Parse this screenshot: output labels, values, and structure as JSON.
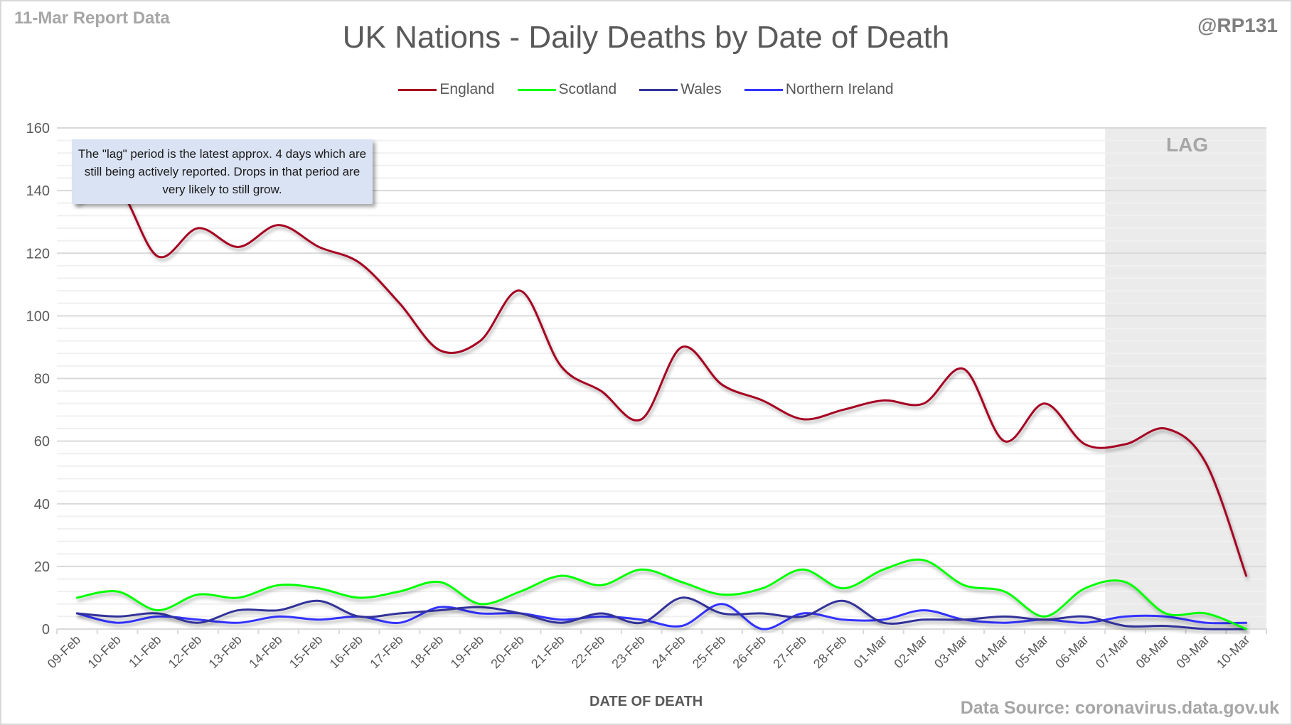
{
  "header": {
    "report_tag": "11-Mar Report Data",
    "handle": "@RP131",
    "source": "Data Source: coronavirus.data.gov.uk"
  },
  "annotation": {
    "text": "The \"lag\" period is the latest approx. 4 days which are still being actively reported.  Drops in that period are very likely to still grow.",
    "lag_label": "LAG"
  },
  "chart_data": {
    "type": "line",
    "title": "UK Nations - Daily Deaths by Date of Death",
    "xlabel": "DATE OF DEATH",
    "ylabel": "",
    "ylim": [
      0,
      160
    ],
    "yticks": [
      0,
      20,
      40,
      60,
      80,
      100,
      120,
      140,
      160
    ],
    "grid": true,
    "minor_grid_step": 4,
    "legend_position": "top-center",
    "smoothed": true,
    "lag_region": {
      "from": "07-Mar",
      "to": "10-Mar",
      "label": "LAG"
    },
    "categories": [
      "09-Feb",
      "10-Feb",
      "11-Feb",
      "12-Feb",
      "13-Feb",
      "14-Feb",
      "15-Feb",
      "16-Feb",
      "17-Feb",
      "18-Feb",
      "19-Feb",
      "20-Feb",
      "21-Feb",
      "22-Feb",
      "23-Feb",
      "24-Feb",
      "25-Feb",
      "26-Feb",
      "27-Feb",
      "28-Feb",
      "01-Mar",
      "02-Mar",
      "03-Mar",
      "04-Mar",
      "05-Mar",
      "06-Mar",
      "07-Mar",
      "08-Mar",
      "09-Mar",
      "10-Mar"
    ],
    "series": [
      {
        "name": "England",
        "color": "#a50021",
        "values": [
          136,
          141,
          119,
          128,
          122,
          129,
          122,
          117,
          104,
          89,
          92,
          108,
          84,
          76,
          67,
          90,
          78,
          73,
          67,
          70,
          73,
          72,
          83,
          60,
          72,
          59,
          59,
          64,
          53,
          17
        ]
      },
      {
        "name": "Scotland",
        "color": "#00ff00",
        "values": [
          10,
          12,
          6,
          11,
          10,
          14,
          13,
          10,
          12,
          15,
          8,
          12,
          17,
          14,
          19,
          15,
          11,
          13,
          19,
          13,
          19,
          22,
          14,
          12,
          4,
          13,
          15,
          5,
          5,
          0
        ]
      },
      {
        "name": "Wales",
        "color": "#333399",
        "values": [
          5,
          4,
          5,
          2,
          6,
          6,
          9,
          4,
          5,
          6,
          7,
          5,
          2,
          5,
          2,
          10,
          5,
          5,
          4,
          9,
          2,
          3,
          3,
          4,
          3,
          4,
          1,
          1,
          0,
          0
        ]
      },
      {
        "name": "Northern Ireland",
        "color": "#3333ff",
        "values": [
          5,
          2,
          4,
          3,
          2,
          4,
          3,
          4,
          2,
          7,
          5,
          5,
          3,
          4,
          3,
          1,
          8,
          0,
          5,
          3,
          3,
          6,
          3,
          2,
          3,
          2,
          4,
          4,
          2,
          2
        ]
      }
    ]
  }
}
